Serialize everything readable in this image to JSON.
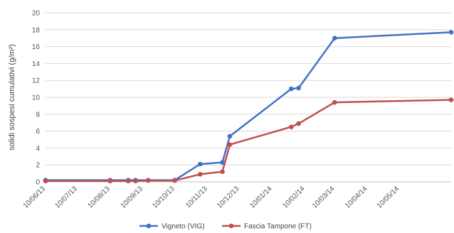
{
  "chart_data": {
    "type": "line",
    "title": "",
    "xlabel": "",
    "ylabel": "solidi sospesi cumulativi (g/m²)",
    "ylim": [
      0,
      20
    ],
    "yticks": [
      "0",
      "2",
      "4",
      "6",
      "8",
      "10",
      "12",
      "14",
      "16",
      "18",
      "20"
    ],
    "xlim": [
      "2013-06-10",
      "2014-06-28"
    ],
    "xticks": [
      "10/06/13",
      "10/07/13",
      "10/08/13",
      "10/09/13",
      "10/10/13",
      "10/11/13",
      "10/12/13",
      "10/01/14",
      "10/02/14",
      "10/03/14",
      "10/04/14",
      "10/05/14"
    ],
    "xtick_dates": [
      "2013-06-10",
      "2013-07-10",
      "2013-08-10",
      "2013-09-10",
      "2013-10-10",
      "2013-11-10",
      "2013-12-10",
      "2014-01-10",
      "2014-02-10",
      "2014-03-10",
      "2014-04-10",
      "2014-05-10"
    ],
    "grid": true,
    "legend_position": "bottom",
    "series": [
      {
        "name": "Vigneto (VIG)",
        "color": "#4472C4",
        "x": [
          "2013-06-10",
          "2013-08-10",
          "2013-08-27",
          "2013-09-03",
          "2013-09-15",
          "2013-10-10",
          "2013-11-03",
          "2013-11-24",
          "2013-12-01",
          "2014-01-28",
          "2014-02-04",
          "2014-03-10",
          "2014-06-28"
        ],
        "y": [
          0.2,
          0.2,
          0.2,
          0.2,
          0.2,
          0.2,
          2.1,
          2.3,
          5.4,
          11.0,
          11.1,
          17.0,
          17.7
        ]
      },
      {
        "name": "Fascia Tampone (FT)",
        "color": "#C0504D",
        "x": [
          "2013-06-10",
          "2013-08-10",
          "2013-08-27",
          "2013-09-03",
          "2013-09-15",
          "2013-10-10",
          "2013-11-03",
          "2013-11-24",
          "2013-12-01",
          "2014-01-28",
          "2014-02-04",
          "2014-03-10",
          "2014-06-28"
        ],
        "y": [
          0.1,
          0.1,
          0.1,
          0.1,
          0.15,
          0.15,
          0.9,
          1.2,
          4.4,
          6.5,
          6.9,
          9.4,
          9.7
        ]
      }
    ]
  }
}
